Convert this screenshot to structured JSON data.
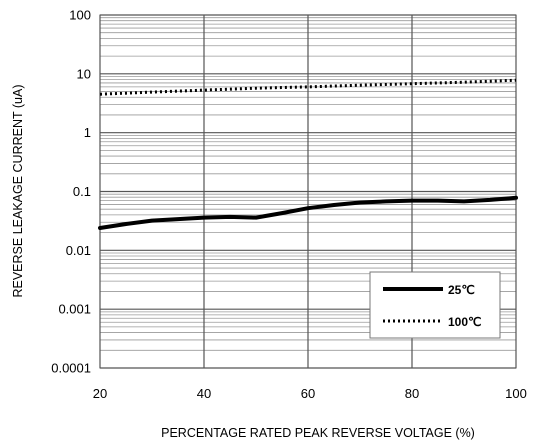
{
  "chart_data": {
    "type": "line",
    "title": "",
    "xlabel": "PERCENTAGE RATED PEAK REVERSE VOLTAGE (%)",
    "ylabel": "REVERSE LEAKAGE CURRENT (uA)",
    "xlim": [
      20,
      100
    ],
    "ylim": [
      0.0001,
      100
    ],
    "yscale": "log",
    "grid": true,
    "legend_position": "bottom-right",
    "x_tick_labels": [
      "20",
      "40",
      "60",
      "80",
      "100"
    ],
    "y_tick_labels": [
      "0.0001",
      "0.001",
      "0.01",
      "0.1",
      "1",
      "10",
      "100"
    ],
    "series": [
      {
        "name": "25℃",
        "style": "solid",
        "color": "#000000",
        "x": [
          20,
          25,
          30,
          35,
          40,
          45,
          50,
          55,
          60,
          65,
          70,
          75,
          80,
          85,
          90,
          95,
          100
        ],
        "y": [
          0.024,
          0.028,
          0.032,
          0.034,
          0.036,
          0.037,
          0.036,
          0.043,
          0.052,
          0.059,
          0.065,
          0.068,
          0.07,
          0.07,
          0.068,
          0.072,
          0.078
        ]
      },
      {
        "name": "100℃",
        "style": "dotted",
        "color": "#000000",
        "x": [
          20,
          30,
          40,
          50,
          60,
          70,
          80,
          90,
          100
        ],
        "y": [
          4.5,
          4.9,
          5.3,
          5.7,
          6.0,
          6.4,
          6.8,
          7.2,
          7.8
        ]
      }
    ]
  }
}
